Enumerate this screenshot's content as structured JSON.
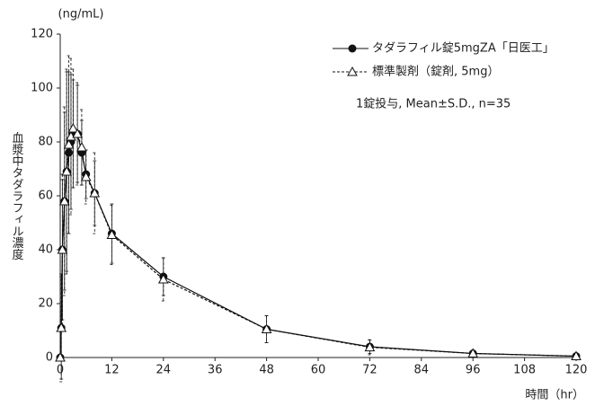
{
  "chart_data": {
    "type": "line",
    "y_unit": "(ng/mL)",
    "y_label": "血漿中タダラフィル濃度",
    "x_label": "時間（hr）",
    "annotation": "1錠投与, Mean±S.D., n=35",
    "x": [
      0,
      0.25,
      0.5,
      1,
      1.5,
      2,
      2.5,
      3,
      4,
      5,
      6,
      8,
      12,
      24,
      48,
      72,
      96,
      120
    ],
    "series": [
      {
        "name": "タダラフィル錠5mgZA「日医工」",
        "color": "#111111",
        "marker": "circle",
        "line_style": "solid",
        "values": [
          0,
          11,
          40,
          58,
          69,
          76,
          80,
          83,
          83,
          76,
          68,
          61,
          46,
          30,
          10.5,
          4,
          1.5,
          0.5
        ],
        "errors": [
          0,
          19,
          26,
          33,
          37,
          30,
          25,
          20,
          18,
          12,
          9,
          12,
          11,
          7,
          5,
          2.5,
          1.2,
          0.5
        ]
      },
      {
        "name": "標準製剤（錠剤, 5mg）",
        "color": "#111111",
        "marker": "triangle",
        "line_style": "dashed",
        "values": [
          0,
          11,
          40,
          58,
          69,
          79,
          82,
          85,
          83,
          78,
          67,
          61,
          45.5,
          29,
          10.5,
          3.8,
          1.5,
          0.5
        ],
        "errors": [
          0,
          20,
          28,
          35,
          38,
          33,
          29,
          22,
          19,
          14,
          10,
          15,
          11,
          8,
          5,
          2.8,
          1.2,
          0.5
        ]
      }
    ],
    "xlim": [
      0,
      120
    ],
    "xticks": [
      0,
      12,
      24,
      36,
      48,
      60,
      72,
      84,
      96,
      108,
      120
    ],
    "ylim": [
      0,
      120
    ],
    "yticks": [
      0,
      20,
      40,
      60,
      80,
      100,
      120
    ]
  }
}
